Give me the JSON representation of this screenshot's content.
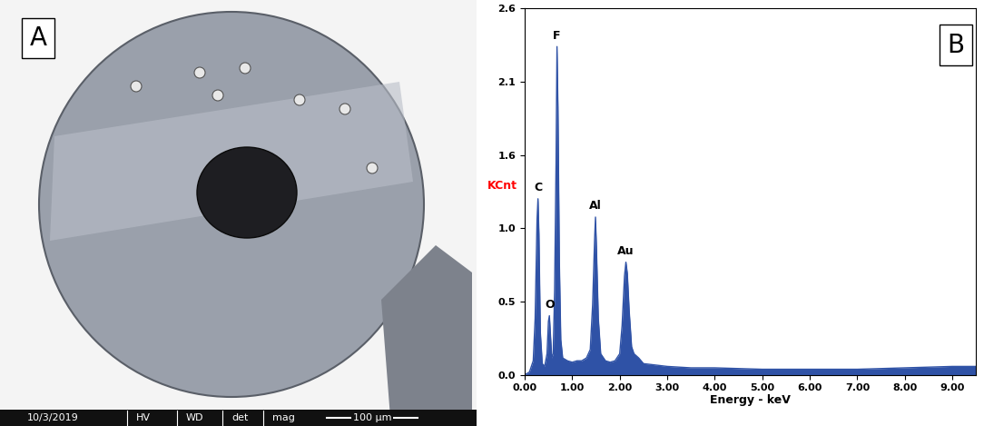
{
  "image_panel": {
    "label": "A",
    "info_bar": [
      "10/3/2019",
      "HV",
      "WD",
      "det",
      "mag"
    ],
    "scale_bar": "100 µm"
  },
  "chart_data": {
    "type": "area",
    "panel_label": "B",
    "x_label": "Energy - keV",
    "y_label": "KCnt",
    "color": "#2f52a6",
    "grid": false,
    "xlim": [
      0,
      9.5
    ],
    "xticks": [
      {
        "value": 0,
        "label": "0.00"
      },
      {
        "value": 1,
        "label": "1.00"
      },
      {
        "value": 2,
        "label": "2.00"
      },
      {
        "value": 3,
        "label": "3.00"
      },
      {
        "value": 4,
        "label": "4.00"
      },
      {
        "value": 5,
        "label": "5.00"
      },
      {
        "value": 6,
        "label": "6.00"
      },
      {
        "value": 7,
        "label": "7.00"
      },
      {
        "value": 8,
        "label": "8.00"
      },
      {
        "value": 9,
        "label": "9.00"
      }
    ],
    "ylim": [
      0,
      2.6
    ],
    "yticks": [
      {
        "value": 0,
        "label": "0.0"
      },
      {
        "value": 0.52,
        "label": "0.5"
      },
      {
        "value": 1.04,
        "label": "1.0"
      },
      {
        "value": 1.56,
        "label": "1.6"
      },
      {
        "value": 2.08,
        "label": "2.1"
      },
      {
        "value": 2.6,
        "label": "2.6"
      }
    ],
    "x": [
      0.0,
      0.1,
      0.18,
      0.22,
      0.26,
      0.28,
      0.3,
      0.33,
      0.37,
      0.42,
      0.47,
      0.5,
      0.52,
      0.54,
      0.57,
      0.6,
      0.63,
      0.66,
      0.68,
      0.7,
      0.73,
      0.76,
      0.8,
      0.9,
      1.0,
      1.1,
      1.2,
      1.3,
      1.38,
      1.43,
      1.47,
      1.49,
      1.51,
      1.55,
      1.6,
      1.7,
      1.8,
      1.9,
      2.0,
      2.05,
      2.1,
      2.13,
      2.16,
      2.2,
      2.25,
      2.3,
      2.4,
      2.5,
      3.0,
      3.5,
      4.0,
      5.0,
      6.0,
      7.0,
      8.0,
      9.0,
      9.5
    ],
    "values": [
      0.0,
      0.02,
      0.1,
      0.4,
      1.1,
      1.25,
      1.0,
      0.3,
      0.08,
      0.06,
      0.15,
      0.38,
      0.42,
      0.3,
      0.12,
      0.15,
      0.6,
      1.5,
      2.33,
      1.9,
      0.8,
      0.25,
      0.12,
      0.1,
      0.09,
      0.1,
      0.1,
      0.12,
      0.18,
      0.5,
      0.95,
      1.12,
      0.9,
      0.4,
      0.15,
      0.1,
      0.09,
      0.1,
      0.15,
      0.35,
      0.7,
      0.8,
      0.72,
      0.45,
      0.2,
      0.15,
      0.12,
      0.08,
      0.06,
      0.05,
      0.05,
      0.04,
      0.04,
      0.04,
      0.05,
      0.06,
      0.06
    ],
    "peaks": [
      {
        "label": "C",
        "energy": 0.28,
        "counts": 1.25
      },
      {
        "label": "O",
        "energy": 0.52,
        "counts": 0.42
      },
      {
        "label": "F",
        "energy": 0.68,
        "counts": 2.33
      },
      {
        "label": "Al",
        "energy": 1.49,
        "counts": 1.12
      },
      {
        "label": "Au",
        "energy": 2.13,
        "counts": 0.8
      }
    ]
  }
}
